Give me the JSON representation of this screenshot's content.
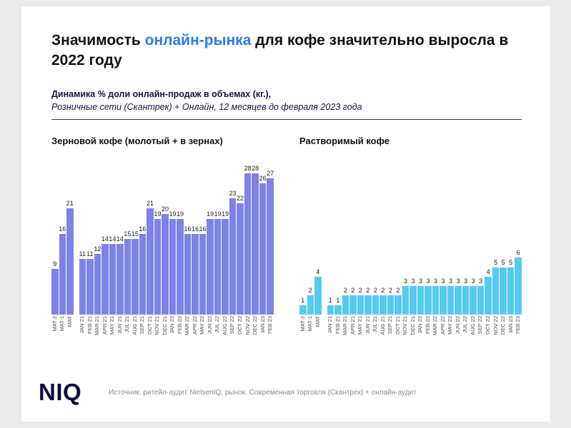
{
  "slide": {
    "title": {
      "pre": "Значимость ",
      "highlight": "онлайн-рынка",
      "post": " для кофе значительно выросла в 2022 году"
    },
    "subtitle_bold": "Динамика % доли онлайн-продаж в объемах (кг.),",
    "subtitle_italic": "Розничные сети (Скантрек) + Онлайн, 12 месяцев до февраля 2023 года",
    "footer": {
      "logo": "NIQ",
      "source": "Источник: ритейл-аудит NielsenIQ, рынок: Современная торговля (Скантрек) + онлайн-аудит"
    }
  },
  "colors": {
    "title_highlight": "#2B7CE6",
    "beans_bar": "#7E82E6",
    "instant_bar": "#55CBF2"
  },
  "chart_data": [
    {
      "type": "bar",
      "title": "Зерновой кофе (молотый + в зернах)",
      "color": "#7E82E6",
      "ylim": [
        0,
        30
      ],
      "legend": "none",
      "grid": false,
      "categories": [
        "MAT-2",
        "MAT-1",
        "MAT",
        "JAN 21",
        "FEB 21",
        "MAR 21",
        "APR 21",
        "MAY 21",
        "JUN 21",
        "JUL 21",
        "AUG 21",
        "SEP 21",
        "OCT 21",
        "NOV 21",
        "DEC 21",
        "JAN 22",
        "FEB 22",
        "MAR 22",
        "APR 22",
        "MAY 22",
        "JUN 22",
        "JUL 22",
        "AUG 22",
        "SEP 22",
        "OCT 22",
        "NOV 22",
        "DEC 22",
        "JAN 23",
        "FEB 23"
      ],
      "values": [
        9,
        16,
        21,
        11,
        11,
        12,
        14,
        14,
        14,
        15,
        15,
        16,
        21,
        19,
        20,
        19,
        19,
        16,
        16,
        16,
        19,
        19,
        19,
        23,
        22,
        28,
        28,
        26,
        27
      ]
    },
    {
      "type": "bar",
      "title": "Растворимый кофе",
      "color": "#55CBF2",
      "ylim": [
        0,
        16
      ],
      "legend": "none",
      "grid": false,
      "categories": [
        "MAT-2",
        "MAT-1",
        "MAT",
        "JAN 21",
        "FEB 21",
        "MAR 21",
        "APR 21",
        "MAY 21",
        "JUN 21",
        "JUL 21",
        "AUG 21",
        "SEP 21",
        "OCT 21",
        "NOV 21",
        "DEC 21",
        "JAN 22",
        "FEB 22",
        "MAR 22",
        "APR 22",
        "MAY 22",
        "JUN 22",
        "JUL 22",
        "AUG 22",
        "SEP 22",
        "OCT 22",
        "NOV 22",
        "DEC 22",
        "JAN 23",
        "FEB 23"
      ],
      "values": [
        1,
        2,
        4,
        1,
        1,
        2,
        2,
        2,
        2,
        2,
        2,
        2,
        2,
        3,
        3,
        3,
        3,
        3,
        3,
        3,
        3,
        3,
        3,
        3,
        4,
        5,
        5,
        5,
        6
      ]
    }
  ]
}
